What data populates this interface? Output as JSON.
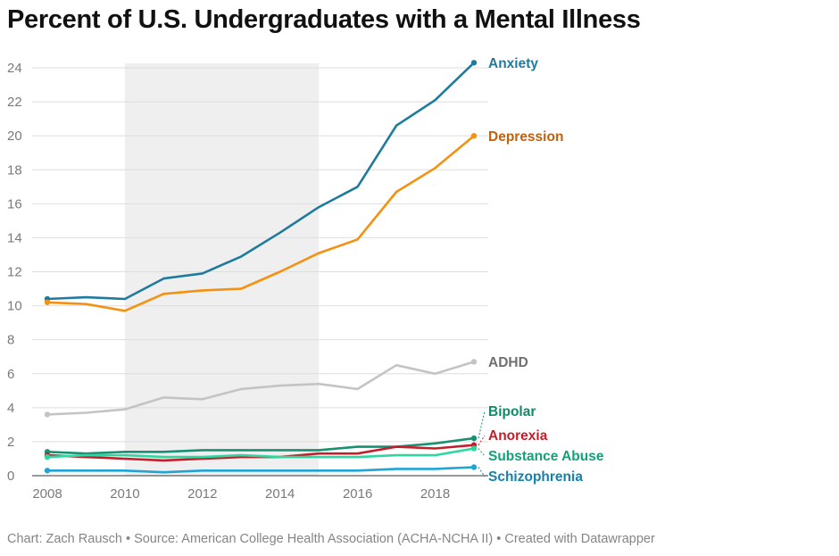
{
  "title": "Percent of U.S. Undergraduates with a Mental Illness",
  "footer": "Chart: Zach Rausch • Source: American College Health Association (ACHA-NCHA II) • Created with Datawrapper",
  "chart_data": {
    "type": "line",
    "title": "Percent of U.S. Undergraduates with a Mental Illness",
    "xlabel": "",
    "ylabel": "",
    "xlim": [
      2008,
      2019
    ],
    "ylim": [
      0,
      24
    ],
    "x_ticks": [
      2008,
      2010,
      2012,
      2014,
      2016,
      2018
    ],
    "y_ticks": [
      0,
      2,
      4,
      6,
      8,
      10,
      12,
      14,
      16,
      18,
      20,
      22,
      24
    ],
    "grid": true,
    "highlight_range": [
      2010,
      2015
    ],
    "highlight_color": "#efefef",
    "x": [
      2008,
      2009,
      2010,
      2011,
      2012,
      2013,
      2014,
      2015,
      2016,
      2017,
      2018,
      2019
    ],
    "series": [
      {
        "name": "Anxiety",
        "color": "#1f7b9e",
        "values": [
          10.4,
          10.5,
          10.4,
          11.6,
          11.9,
          12.9,
          14.3,
          15.8,
          17.0,
          20.6,
          22.1,
          24.3
        ]
      },
      {
        "name": "Depression",
        "color": "#f39211",
        "label_color": "#c4600a",
        "values": [
          10.2,
          10.1,
          9.7,
          10.7,
          10.9,
          11.0,
          12.0,
          13.1,
          13.9,
          16.7,
          18.1,
          20.0
        ]
      },
      {
        "name": "ADHD",
        "color": "#c4c4c4",
        "label_color": "#6f6f6f",
        "values": [
          3.6,
          3.7,
          3.9,
          4.6,
          4.5,
          5.1,
          5.3,
          5.4,
          5.1,
          6.5,
          6.0,
          6.7
        ]
      },
      {
        "name": "Bipolar",
        "color": "#179074",
        "label_color": "#0f8a6a",
        "values": [
          1.4,
          1.3,
          1.4,
          1.4,
          1.5,
          1.5,
          1.5,
          1.5,
          1.7,
          1.7,
          1.9,
          2.2
        ]
      },
      {
        "name": "Anorexia",
        "color": "#c21f2b",
        "label_color": "#c21f2b",
        "values": [
          1.2,
          1.1,
          1.0,
          0.9,
          1.0,
          1.1,
          1.1,
          1.3,
          1.3,
          1.7,
          1.6,
          1.8
        ]
      },
      {
        "name": "Substance Abuse",
        "color": "#2ed6a0",
        "label_color": "#13a179",
        "values": [
          1.1,
          1.2,
          1.2,
          1.1,
          1.1,
          1.2,
          1.1,
          1.1,
          1.1,
          1.2,
          1.2,
          1.6
        ]
      },
      {
        "name": "Schizophrenia",
        "color": "#1fa4d6",
        "label_color": "#1680aa",
        "values": [
          0.3,
          0.3,
          0.3,
          0.2,
          0.3,
          0.3,
          0.3,
          0.3,
          0.3,
          0.4,
          0.4,
          0.5
        ]
      }
    ]
  }
}
